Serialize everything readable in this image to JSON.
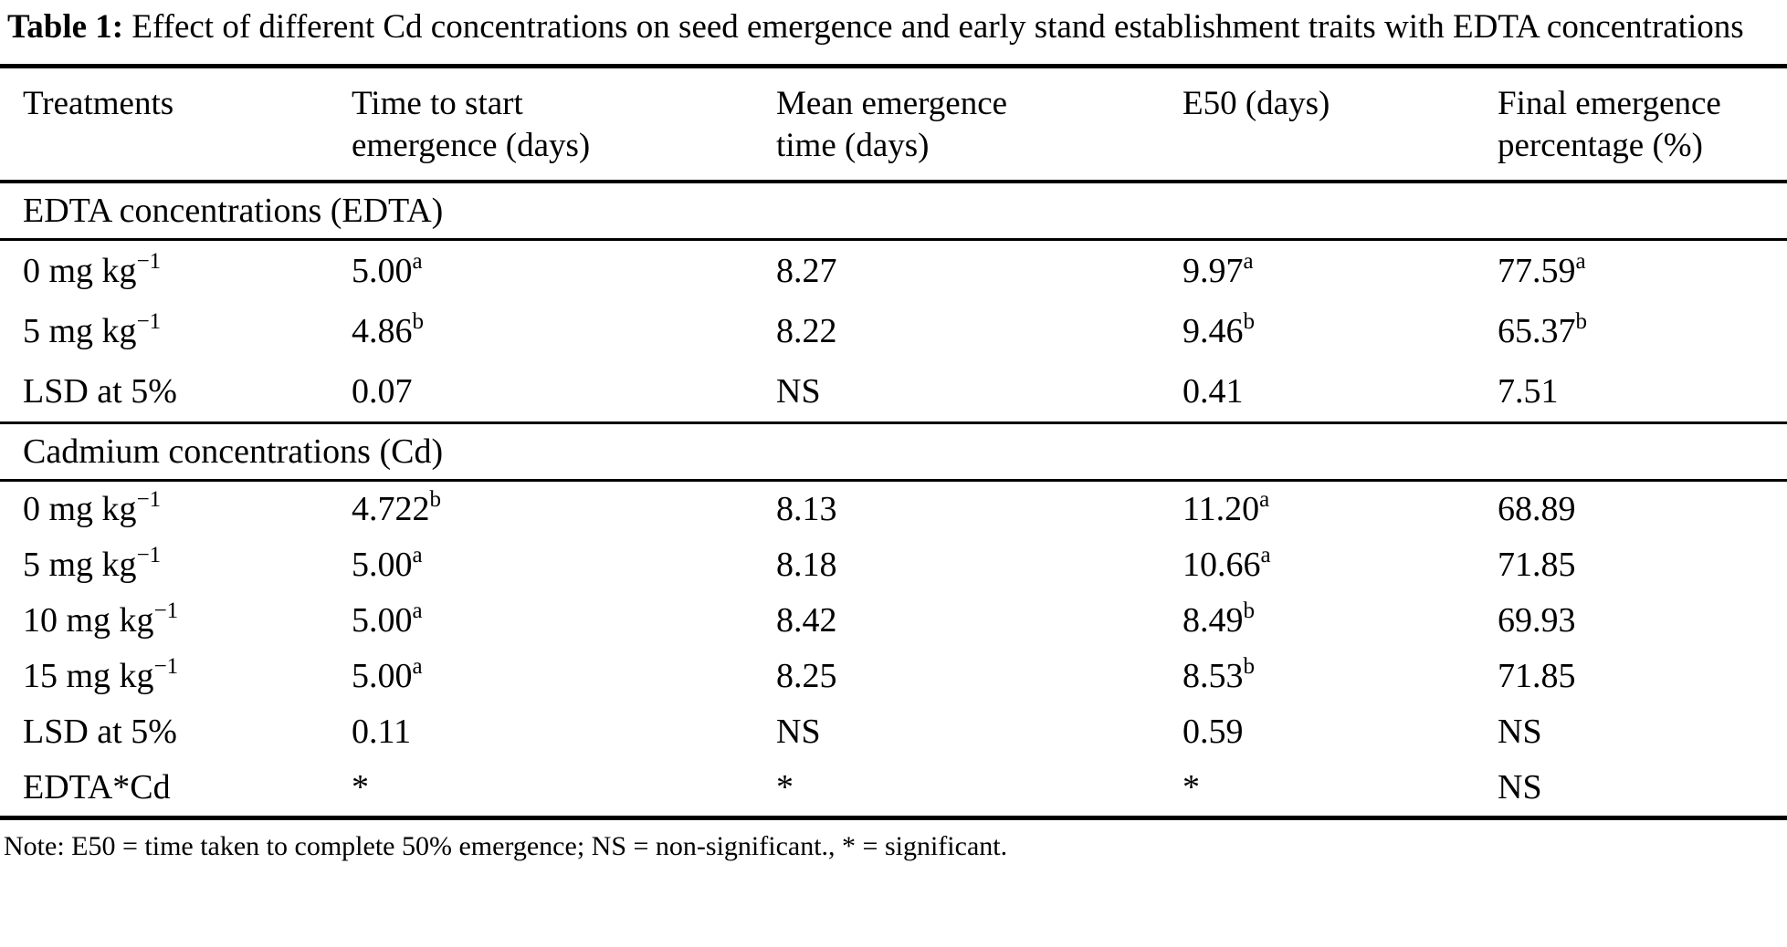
{
  "title": {
    "label": "Table 1:",
    "text": " Effect of different Cd concentrations on seed emergence and early stand establishment traits with EDTA concentrations"
  },
  "table": {
    "headers": [
      {
        "line1": "Treatments",
        "line2": ""
      },
      {
        "line1": "Time to start",
        "line2": "emergence (days)"
      },
      {
        "line1": "Mean emergence",
        "line2": "time (days)"
      },
      {
        "line1": "E50 (days)",
        "line2": ""
      },
      {
        "line1": "Final emergence",
        "line2": "percentage (%)"
      }
    ],
    "sections": [
      {
        "label": "EDTA concentrations (EDTA)",
        "rows": [
          {
            "treatment": "0 mg kg",
            "treatment_sup": "−1",
            "c1": "5.00",
            "c1s": "a",
            "c2": "8.27",
            "c2s": "",
            "c3": "9.97",
            "c3s": "a",
            "c4": "77.59",
            "c4s": "a"
          },
          {
            "treatment": "5 mg kg",
            "treatment_sup": "−1",
            "c1": "4.86",
            "c1s": "b",
            "c2": "8.22",
            "c2s": "",
            "c3": "9.46",
            "c3s": "b",
            "c4": "65.37",
            "c4s": "b"
          },
          {
            "treatment": "LSD at 5%",
            "treatment_sup": "",
            "c1": "0.07",
            "c1s": "",
            "c2": "NS",
            "c2s": "",
            "c3": "0.41",
            "c3s": "",
            "c4": "7.51",
            "c4s": ""
          }
        ]
      },
      {
        "label": "Cadmium concentrations (Cd)",
        "rows": [
          {
            "treatment": "0 mg kg",
            "treatment_sup": "−1",
            "c1": "4.722",
            "c1s": "b",
            "c2": "8.13",
            "c2s": "",
            "c3": "11.20",
            "c3s": "a",
            "c4": "68.89",
            "c4s": ""
          },
          {
            "treatment": "5 mg kg",
            "treatment_sup": "−1",
            "c1": "5.00",
            "c1s": "a",
            "c2": "8.18",
            "c2s": "",
            "c3": "10.66",
            "c3s": "a",
            "c4": "71.85",
            "c4s": ""
          },
          {
            "treatment": "10 mg kg",
            "treatment_sup": "−1",
            "c1": "5.00",
            "c1s": "a",
            "c2": "8.42",
            "c2s": "",
            "c3": "8.49",
            "c3s": "b",
            "c4": "69.93",
            "c4s": ""
          },
          {
            "treatment": "15 mg kg",
            "treatment_sup": "−1",
            "c1": "5.00",
            "c1s": "a",
            "c2": "8.25",
            "c2s": "",
            "c3": "8.53",
            "c3s": "b",
            "c4": "71.85",
            "c4s": ""
          },
          {
            "treatment": "LSD at 5%",
            "treatment_sup": "",
            "c1": "0.11",
            "c1s": "",
            "c2": "NS",
            "c2s": "",
            "c3": "0.59",
            "c3s": "",
            "c4": "NS",
            "c4s": ""
          },
          {
            "treatment": "EDTA*Cd",
            "treatment_sup": "",
            "c1": "*",
            "c1s": "",
            "c2": "*",
            "c2s": "",
            "c3": "*",
            "c3s": "",
            "c4": "NS",
            "c4s": ""
          }
        ]
      }
    ]
  },
  "note": "Note: E50 = time taken to complete 50% emergence; NS = non-significant., * = significant."
}
